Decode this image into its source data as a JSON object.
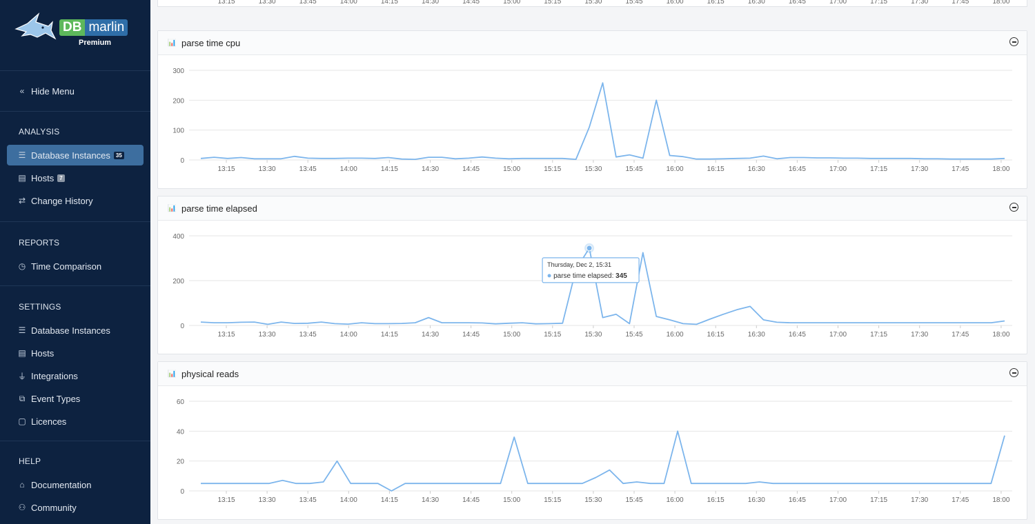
{
  "brand": {
    "short": "DB",
    "name": "marlin",
    "tier": "Premium"
  },
  "menu": {
    "hide_label": "Hide Menu"
  },
  "sections": {
    "analysis": "ANALYSIS",
    "reports": "REPORTS",
    "settings": "SETTINGS",
    "help": "HELP"
  },
  "analysis_items": [
    {
      "label": "Database Instances",
      "badge": "35"
    },
    {
      "label": "Hosts",
      "badge": "7"
    },
    {
      "label": "Change History"
    }
  ],
  "report_items": [
    {
      "label": "Time Comparison"
    }
  ],
  "settings_items": [
    {
      "label": "Database Instances"
    },
    {
      "label": "Hosts"
    },
    {
      "label": "Integrations"
    },
    {
      "label": "Event Types"
    },
    {
      "label": "Licences"
    }
  ],
  "help_items": [
    {
      "label": "Documentation"
    },
    {
      "label": "Community"
    }
  ],
  "x_ticks": [
    "13:15",
    "13:30",
    "13:45",
    "14:00",
    "14:15",
    "14:30",
    "14:45",
    "15:00",
    "15:15",
    "15:30",
    "15:45",
    "16:00",
    "16:15",
    "16:30",
    "16:45",
    "17:00",
    "17:15",
    "17:30",
    "17:45",
    "18:00"
  ],
  "tooltip": {
    "date": "Thursday, Dec 2, 15:31",
    "series": "parse time elapsed",
    "value": "345"
  },
  "line_color": "#7cb5ec",
  "chart_data": [
    {
      "type": "line",
      "title": "parse time cpu",
      "ylim": [
        0,
        300
      ],
      "yticks": [
        0,
        100,
        200,
        300
      ],
      "x_range": [
        "13:05",
        "18:00"
      ],
      "series": [
        {
          "values": [
            5,
            9,
            5,
            8,
            4,
            4,
            4,
            12,
            6,
            5,
            5,
            6,
            6,
            5,
            8,
            3,
            2,
            9,
            9,
            4,
            6,
            10,
            6,
            4,
            5,
            5,
            5,
            5,
            2,
            110,
            258,
            10,
            17,
            6,
            200,
            15,
            11,
            3,
            3,
            4,
            5,
            6,
            13,
            4,
            8,
            8,
            7,
            7,
            6,
            6,
            5,
            5,
            5,
            5,
            4,
            4,
            3,
            3,
            3,
            3,
            5
          ]
        }
      ]
    },
    {
      "type": "line",
      "title": "parse time elapsed",
      "ylim": [
        0,
        400
      ],
      "yticks": [
        0,
        200,
        400
      ],
      "x_range": [
        "13:05",
        "18:00"
      ],
      "series": [
        {
          "values": [
            15,
            12,
            12,
            14,
            15,
            5,
            15,
            9,
            10,
            15,
            8,
            6,
            12,
            8,
            8,
            9,
            12,
            35,
            12,
            12,
            12,
            11,
            7,
            10,
            12,
            7,
            8,
            10,
            250,
            345,
            35,
            50,
            8,
            325,
            40,
            25,
            8,
            5,
            28,
            50,
            70,
            85,
            25,
            14,
            12,
            12,
            12,
            12,
            12,
            12,
            12,
            12,
            12,
            12,
            12,
            12,
            12,
            12,
            12,
            12,
            20
          ]
        }
      ]
    },
    {
      "type": "line",
      "title": "physical reads",
      "ylim": [
        0,
        60
      ],
      "yticks": [
        0,
        20,
        40,
        60
      ],
      "x_range": [
        "13:05",
        "18:00"
      ],
      "series": [
        {
          "values": [
            5,
            5,
            5,
            5,
            5,
            5,
            7,
            5,
            5,
            6,
            20,
            5,
            5,
            5,
            0,
            5,
            5,
            5,
            5,
            5,
            5,
            5,
            5,
            36,
            5,
            5,
            5,
            5,
            5,
            9,
            14,
            5,
            6,
            5,
            5,
            40,
            5,
            5,
            5,
            5,
            5,
            6,
            5,
            5,
            5,
            5,
            5,
            5,
            5,
            5,
            5,
            5,
            5,
            5,
            5,
            5,
            5,
            5,
            5,
            37
          ]
        }
      ]
    }
  ]
}
